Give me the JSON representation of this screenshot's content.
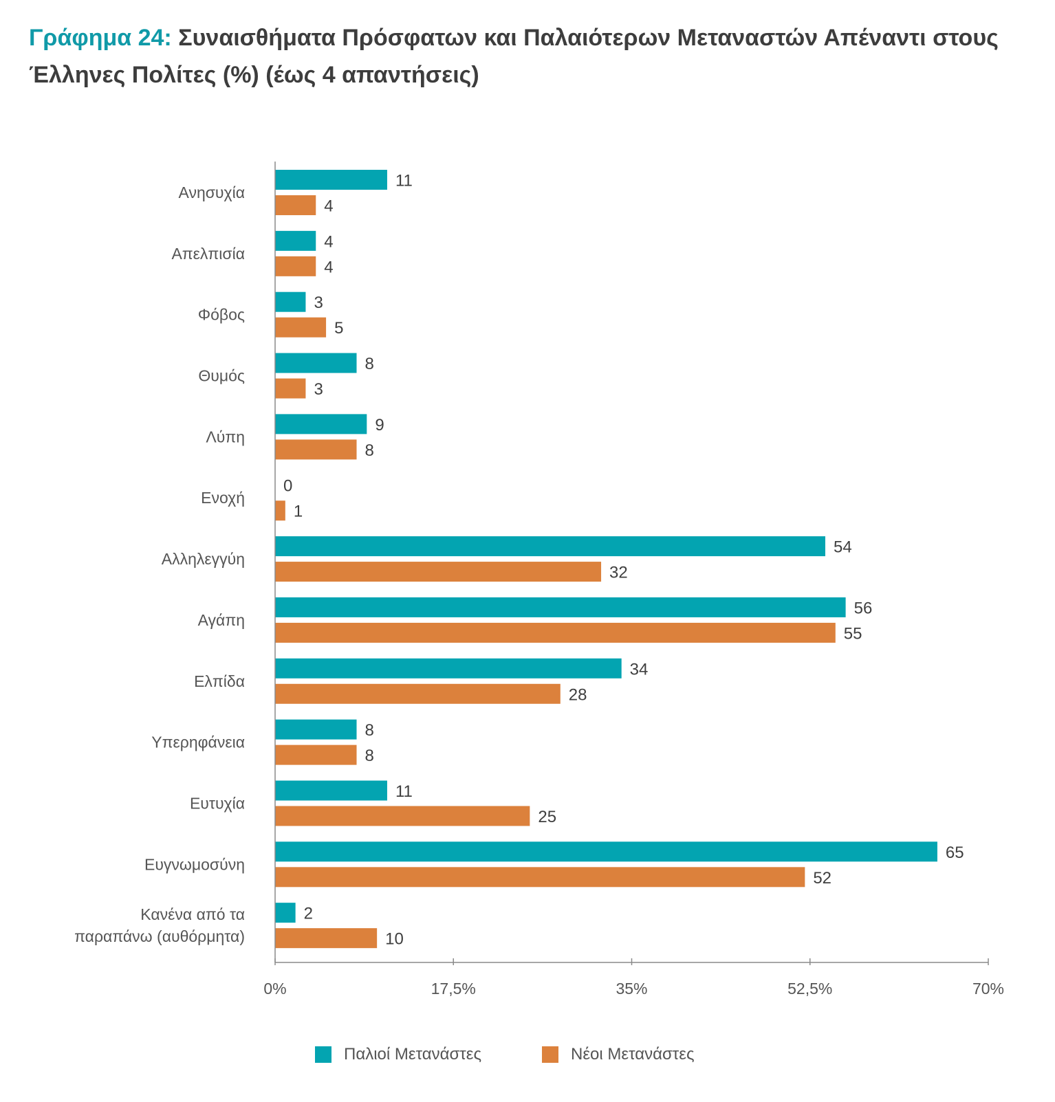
{
  "title": {
    "prefix": "Γράφημα 24:",
    "text": "Συναισθήματα Πρόσφατων και Παλαιότερων Μεταναστών Απέναντι στους Έλληνες Πολίτες (%) (έως 4 απαντήσεις)"
  },
  "colors": {
    "old": "#03a4b1",
    "new": "#dc813c",
    "title_accent": "#109aa8"
  },
  "legend": {
    "old_label": "Παλιοί Μετανάστες",
    "new_label": "Νέοι Μετανάστες"
  },
  "chart_data": {
    "type": "bar",
    "orientation": "horizontal",
    "categories": [
      "Ανησυχία",
      "Απελπισία",
      "Φόβος",
      "Θυμός",
      "Λύπη",
      "Ενοχή",
      "Αλληλεγγύη",
      "Αγάπη",
      "Ελπίδα",
      "Υπερηφάνεια",
      "Ευτυχία",
      "Ευγνωμοσύνη",
      "Κανένα από τα παραπάνω (αυθόρμητα)"
    ],
    "category_lines": [
      [
        "Ανησυχία"
      ],
      [
        "Απελπισία"
      ],
      [
        "Φόβος"
      ],
      [
        "Θυμός"
      ],
      [
        "Λύπη"
      ],
      [
        "Ενοχή"
      ],
      [
        "Αλληλεγγύη"
      ],
      [
        "Αγάπη"
      ],
      [
        "Ελπίδα"
      ],
      [
        "Υπερηφάνεια"
      ],
      [
        "Ευτυχία"
      ],
      [
        "Ευγνωμοσύνη"
      ],
      [
        "Κανένα από τα",
        "παραπάνω (αυθόρμητα)"
      ]
    ],
    "series": [
      {
        "name": "Παλιοί Μετανάστες",
        "values": [
          11,
          4,
          3,
          8,
          9,
          0,
          54,
          56,
          34,
          8,
          11,
          65,
          2
        ]
      },
      {
        "name": "Νέοι Μετανάστες",
        "values": [
          4,
          4,
          5,
          3,
          8,
          1,
          32,
          55,
          28,
          8,
          25,
          52,
          10
        ]
      }
    ],
    "xlim": [
      0,
      70
    ],
    "ticks": [
      0,
      17.5,
      35,
      52.5,
      70
    ],
    "tick_labels": [
      "0%",
      "17,5%",
      "35%",
      "52,5%",
      "70%"
    ],
    "grid": false,
    "legend_position": "bottom"
  }
}
